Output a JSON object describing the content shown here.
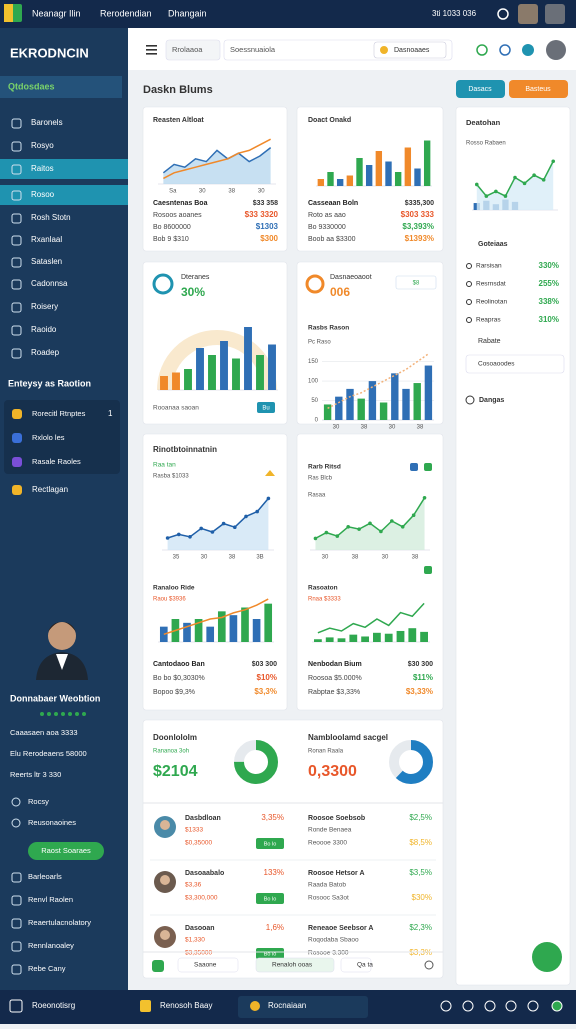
{
  "status_bar": {
    "items": [
      "Neanagr Ilin",
      "Rerodendian",
      "Dhangain"
    ],
    "right": "3ti 1033 036"
  },
  "sidebar": {
    "brand": "EKRODNCIN",
    "section": "Qtdosdaes",
    "nav": [
      "Baronels",
      "Rosyo",
      "Raitos",
      "Rosoo",
      "Rosh Stotn",
      "Rxanlaal",
      "Sataslen",
      "Cadonnsa",
      "Roisery",
      "Raoido",
      "Roadep"
    ],
    "group_title": "Enteysy as Raotion",
    "group": [
      "Rorecitl Rtnptes",
      "Rxlolo les",
      "Rasale Raoles"
    ],
    "group_count": "1",
    "extra": "Rectlagan",
    "profile_name": "Donnabaer Weobtion",
    "profile_items": [
      "Caaasaen aoa 3333",
      "Elu Rerodeaens 58000",
      "Reerts ltr 3 330",
      "Rocsy",
      "Reusonaoines"
    ],
    "button": "Raost Soaraes",
    "footer_items": [
      "Barleoarls",
      "Renvl Raolen",
      "Reaertulacnolatory",
      "Rennlanoaley",
      "Rebe Cany"
    ]
  },
  "header": {
    "search_a": "Rrolaaoa",
    "search_b": "Soessnuaiola",
    "chip": "Dasnoaaes"
  },
  "page": {
    "title": "Daskn Blums",
    "btn_primary": "Dasacs",
    "btn_secondary": "Basteus"
  },
  "card1": {
    "title": "Reasten Altloat",
    "chart": {
      "type": "area",
      "ylim": [
        0,
        10
      ],
      "x_labels": [
        "Sa",
        "30",
        "38",
        "30"
      ],
      "lines": [
        {
          "color": "#2f6fb5",
          "fill": "#b9d8ef",
          "values": [
            2,
            3.5,
            3,
            4.5,
            4,
            6,
            4.5,
            5.5,
            4,
            5,
            6.5
          ]
        },
        {
          "color": "#f0892a",
          "values": [
            1,
            2,
            2.5,
            3,
            3.5,
            4,
            4.5,
            5.5,
            6,
            7,
            8
          ]
        }
      ]
    },
    "stats": [
      {
        "label": "Caesntenas Boa",
        "value": "$33 358",
        "color": "#333"
      },
      {
        "label": "Rosoos aoanes",
        "value": "$33 3320",
        "color": "#e8572a"
      },
      {
        "label": "Bo 8600000",
        "value": "$1303",
        "color": "#2f6fb5"
      },
      {
        "label": "Bob 9 $310",
        "value": "$300",
        "color": "#f0892a"
      }
    ]
  },
  "card2": {
    "title": "Doact Onakd",
    "chart": {
      "type": "bar",
      "ylim": [
        0,
        8
      ],
      "bars": {
        "values": [
          1,
          2,
          1,
          1.5,
          4,
          3,
          5,
          3.5,
          2,
          5.5,
          2.5,
          6.5
        ],
        "colors": [
          "#f0892a",
          "#2fa84f",
          "#2f6fb5",
          "#f0892a",
          "#2fa84f",
          "#2f6fb5",
          "#f0892a",
          "#2f6fb5",
          "#2fa84f",
          "#f0892a",
          "#2f6fb5",
          "#2fa84f"
        ]
      }
    },
    "stats": [
      {
        "label": "Casseaan Boln",
        "value": "$335,300",
        "color": "#333"
      },
      {
        "label": "Roto as aao",
        "value": "$303 333",
        "color": "#e8572a"
      },
      {
        "label": "Bo 9330000",
        "value": "$3,393%",
        "color": "#2fa84f"
      },
      {
        "label": "Boob aa $3300",
        "value": "$1393%",
        "color": "#f0892a"
      }
    ]
  },
  "card3": {
    "title": "Dteranes",
    "value": "30%",
    "button": "Bu",
    "footer": "Rooanaa saoan",
    "chart": {
      "type": "bar",
      "ylim": [
        0,
        10
      ],
      "bars": {
        "values": [
          2,
          2.5,
          3,
          6,
          5,
          7,
          4.5,
          9,
          5,
          6.5
        ],
        "colors": [
          "#f0892a",
          "#f0892a",
          "#2fa84f",
          "#2f6fb5",
          "#2fa84f",
          "#2f6fb5",
          "#2fa84f",
          "#2f6fb5",
          "#2fa84f",
          "#2f6fb5"
        ]
      }
    }
  },
  "card4": {
    "title": "Dasnaeoaoot",
    "value": "006",
    "chip": "$8",
    "subtitle": "Rasbs Rason",
    "legend": "Pc Raso",
    "chart": {
      "type": "combo",
      "ylim": [
        0,
        180
      ],
      "yticks": [
        0,
        50,
        100,
        150
      ],
      "x_labels": [
        "30",
        "38",
        "30",
        "38"
      ],
      "bars": {
        "values": [
          40,
          60,
          80,
          55,
          100,
          45,
          120,
          80,
          95,
          140
        ],
        "colors": [
          "#2fa84f",
          "#2f6fb5",
          "#2f6fb5",
          "#2fa84f",
          "#2f6fb5",
          "#2fa84f",
          "#2f6fb5",
          "#2f6fb5",
          "#2fa84f",
          "#2f6fb5"
        ]
      },
      "lines": [
        {
          "color": "#f3b27a",
          "dash": true,
          "values": [
            30,
            45,
            60,
            70,
            85,
            100,
            115,
            130,
            150,
            170
          ]
        }
      ]
    }
  },
  "card5": {
    "title": "Rinotbtoinnatnin",
    "subtitle": "Raa tan",
    "sub2": "Rasba $1033",
    "chart": {
      "type": "area",
      "ylim": [
        0,
        5
      ],
      "x_labels": [
        "35",
        "30",
        "38",
        "3B"
      ],
      "lines": [
        {
          "color": "#1f5fa8",
          "fill": "#cfe5f5",
          "markers": true,
          "values": [
            1,
            1.3,
            1.1,
            1.8,
            1.5,
            2.2,
            1.9,
            2.8,
            3.2,
            4.3
          ]
        }
      ]
    },
    "title2": "Ranaloo Ride",
    "sub3": "Raou $3936",
    "chart2": {
      "type": "combo",
      "ylim": [
        0,
        6
      ],
      "bars": {
        "values": [
          2,
          3,
          2.5,
          3,
          2,
          4,
          3.5,
          4.5,
          3,
          5
        ],
        "colors": [
          "#2f6fb5",
          "#2fa84f",
          "#2f6fb5",
          "#2fa84f",
          "#2f6fb5",
          "#2fa84f",
          "#2f6fb5",
          "#2fa84f",
          "#2f6fb5",
          "#2fa84f"
        ]
      },
      "lines": [
        {
          "color": "#f0892a",
          "values": [
            1,
            1.5,
            2,
            2.5,
            3,
            3.2,
            3.8,
            4.2,
            4.8,
            5.6
          ]
        }
      ]
    },
    "stats": [
      {
        "label": "Cantodaoo Ban",
        "value": "$03 300",
        "color": "#333"
      },
      {
        "label": "Bo bo $0,3030%",
        "value": "$10%",
        "color": "#e8572a"
      },
      {
        "label": "Bopoo $9,3%",
        "value": "$3,3%",
        "color": "#f0892a"
      }
    ]
  },
  "card6": {
    "title": "Rarb Ritsd",
    "subtitle": "Ras Blcb",
    "sub2": "Rasaa",
    "chart": {
      "type": "area",
      "ylim": [
        0,
        5
      ],
      "x_labels": [
        "30",
        "38",
        "30",
        "38"
      ],
      "lines": [
        {
          "color": "#2fa84f",
          "fill": "#d3ecdc",
          "markers": true,
          "values": [
            1,
            1.5,
            1.2,
            2,
            1.8,
            2.3,
            1.6,
            2.5,
            2,
            3,
            4.5
          ]
        }
      ]
    },
    "title2": "Rasoaton",
    "sub3": "Rnaa $3333",
    "chart2": {
      "type": "combo",
      "ylim": [
        0,
        5
      ],
      "bars": {
        "values": [
          0.3,
          0.5,
          0.4,
          0.8,
          0.6,
          1,
          0.9,
          1.2,
          1.5,
          1.1
        ],
        "colors": [
          "#2fa84f"
        ]
      },
      "lines": [
        {
          "color": "#2fa84f",
          "values": [
            1,
            1.5,
            1.2,
            2,
            1.6,
            2.5,
            1.8,
            3.2,
            2.8,
            4.2
          ]
        }
      ]
    },
    "stats": [
      {
        "label": "Nenbodan Bium",
        "value": "$30 300",
        "color": "#333"
      },
      {
        "label": "Roosoa $5.000%",
        "value": "$11%",
        "color": "#2fa84f"
      },
      {
        "label": "Rabptae $3,33%",
        "value": "$3,33%",
        "color": "#f0892a"
      }
    ]
  },
  "summary": {
    "left": {
      "title": "Doonlololm",
      "sub": "Rananoa 3oh",
      "value": "$2104",
      "ring": 75,
      "color": "#2fa84f"
    },
    "right": {
      "title": "Nambloolamd sacgel",
      "sub": "Ronan Raala",
      "value": "0,3300",
      "ring": 62,
      "color": "#e8572a"
    },
    "rows": [
      {
        "name": "Dasbdloan",
        "sub": "$1333",
        "detail": "$0,35000",
        "pct": "3,35%",
        "badge": "Bo lo",
        "r_name": "Roosoe Soebsob",
        "r_sub": "Ronde Benaea",
        "r_detail": "Reoooe 3300",
        "r_pct": "$2,5%",
        "r_pct2": "$8,5%"
      },
      {
        "name": "Dasoaabalo",
        "sub": "$3,36",
        "detail": "$3,300,000",
        "pct": "133%",
        "badge": "Bo lo",
        "r_name": "Roosoe Hetsor A",
        "r_sub": "Raada Batob",
        "r_detail": "Rosooc Sa3ot",
        "r_pct": "$3,5%",
        "r_pct2": "$30%"
      },
      {
        "name": "Dasooan",
        "sub": "$1,330",
        "detail": "$3,35000",
        "pct": "1,6%",
        "badge": "Bo lo",
        "r_name": "Reneaoe Seebsor A",
        "r_sub": "Roqodaba Sbaoo",
        "r_detail": "Rosooe 3.300",
        "r_pct": "$2,3%",
        "r_pct2": "$3,3%"
      }
    ],
    "footer": [
      "Saaone",
      "Renaloh ooas",
      "Qa ta"
    ]
  },
  "right_panel": {
    "title": "Deatohan",
    "subtitle": "Rosso Rabaen",
    "chart": {
      "type": "combo",
      "ylim": [
        0,
        5
      ],
      "bars": {
        "values": [
          0.6,
          0.8,
          0.5,
          0.9,
          0.7,
          0,
          0,
          0,
          0
        ],
        "colors": [
          "#2f6fb5"
        ]
      },
      "lines": [
        {
          "color": "#2fa84f",
          "fill": "#d8ecf8",
          "markers": true,
          "values": [
            2.2,
            1.2,
            1.6,
            1.2,
            2.8,
            2.3,
            3,
            2.6,
            4.2
          ]
        }
      ]
    },
    "section": "Goteiaas",
    "rows": [
      {
        "label": "Rarsisan",
        "value": "330%"
      },
      {
        "label": "Resrnsdat",
        "value": "255%"
      },
      {
        "label": "Reolinotan",
        "value": "338%"
      },
      {
        "label": "Reapras",
        "value": "310%"
      }
    ],
    "select_label": "Rabate",
    "select": "Cosoaoodes",
    "footer": "Dangas"
  },
  "bottom_bar": {
    "items": [
      "Roeonotisrg",
      "Renosoh Baay",
      "Rocnaiaan"
    ]
  }
}
